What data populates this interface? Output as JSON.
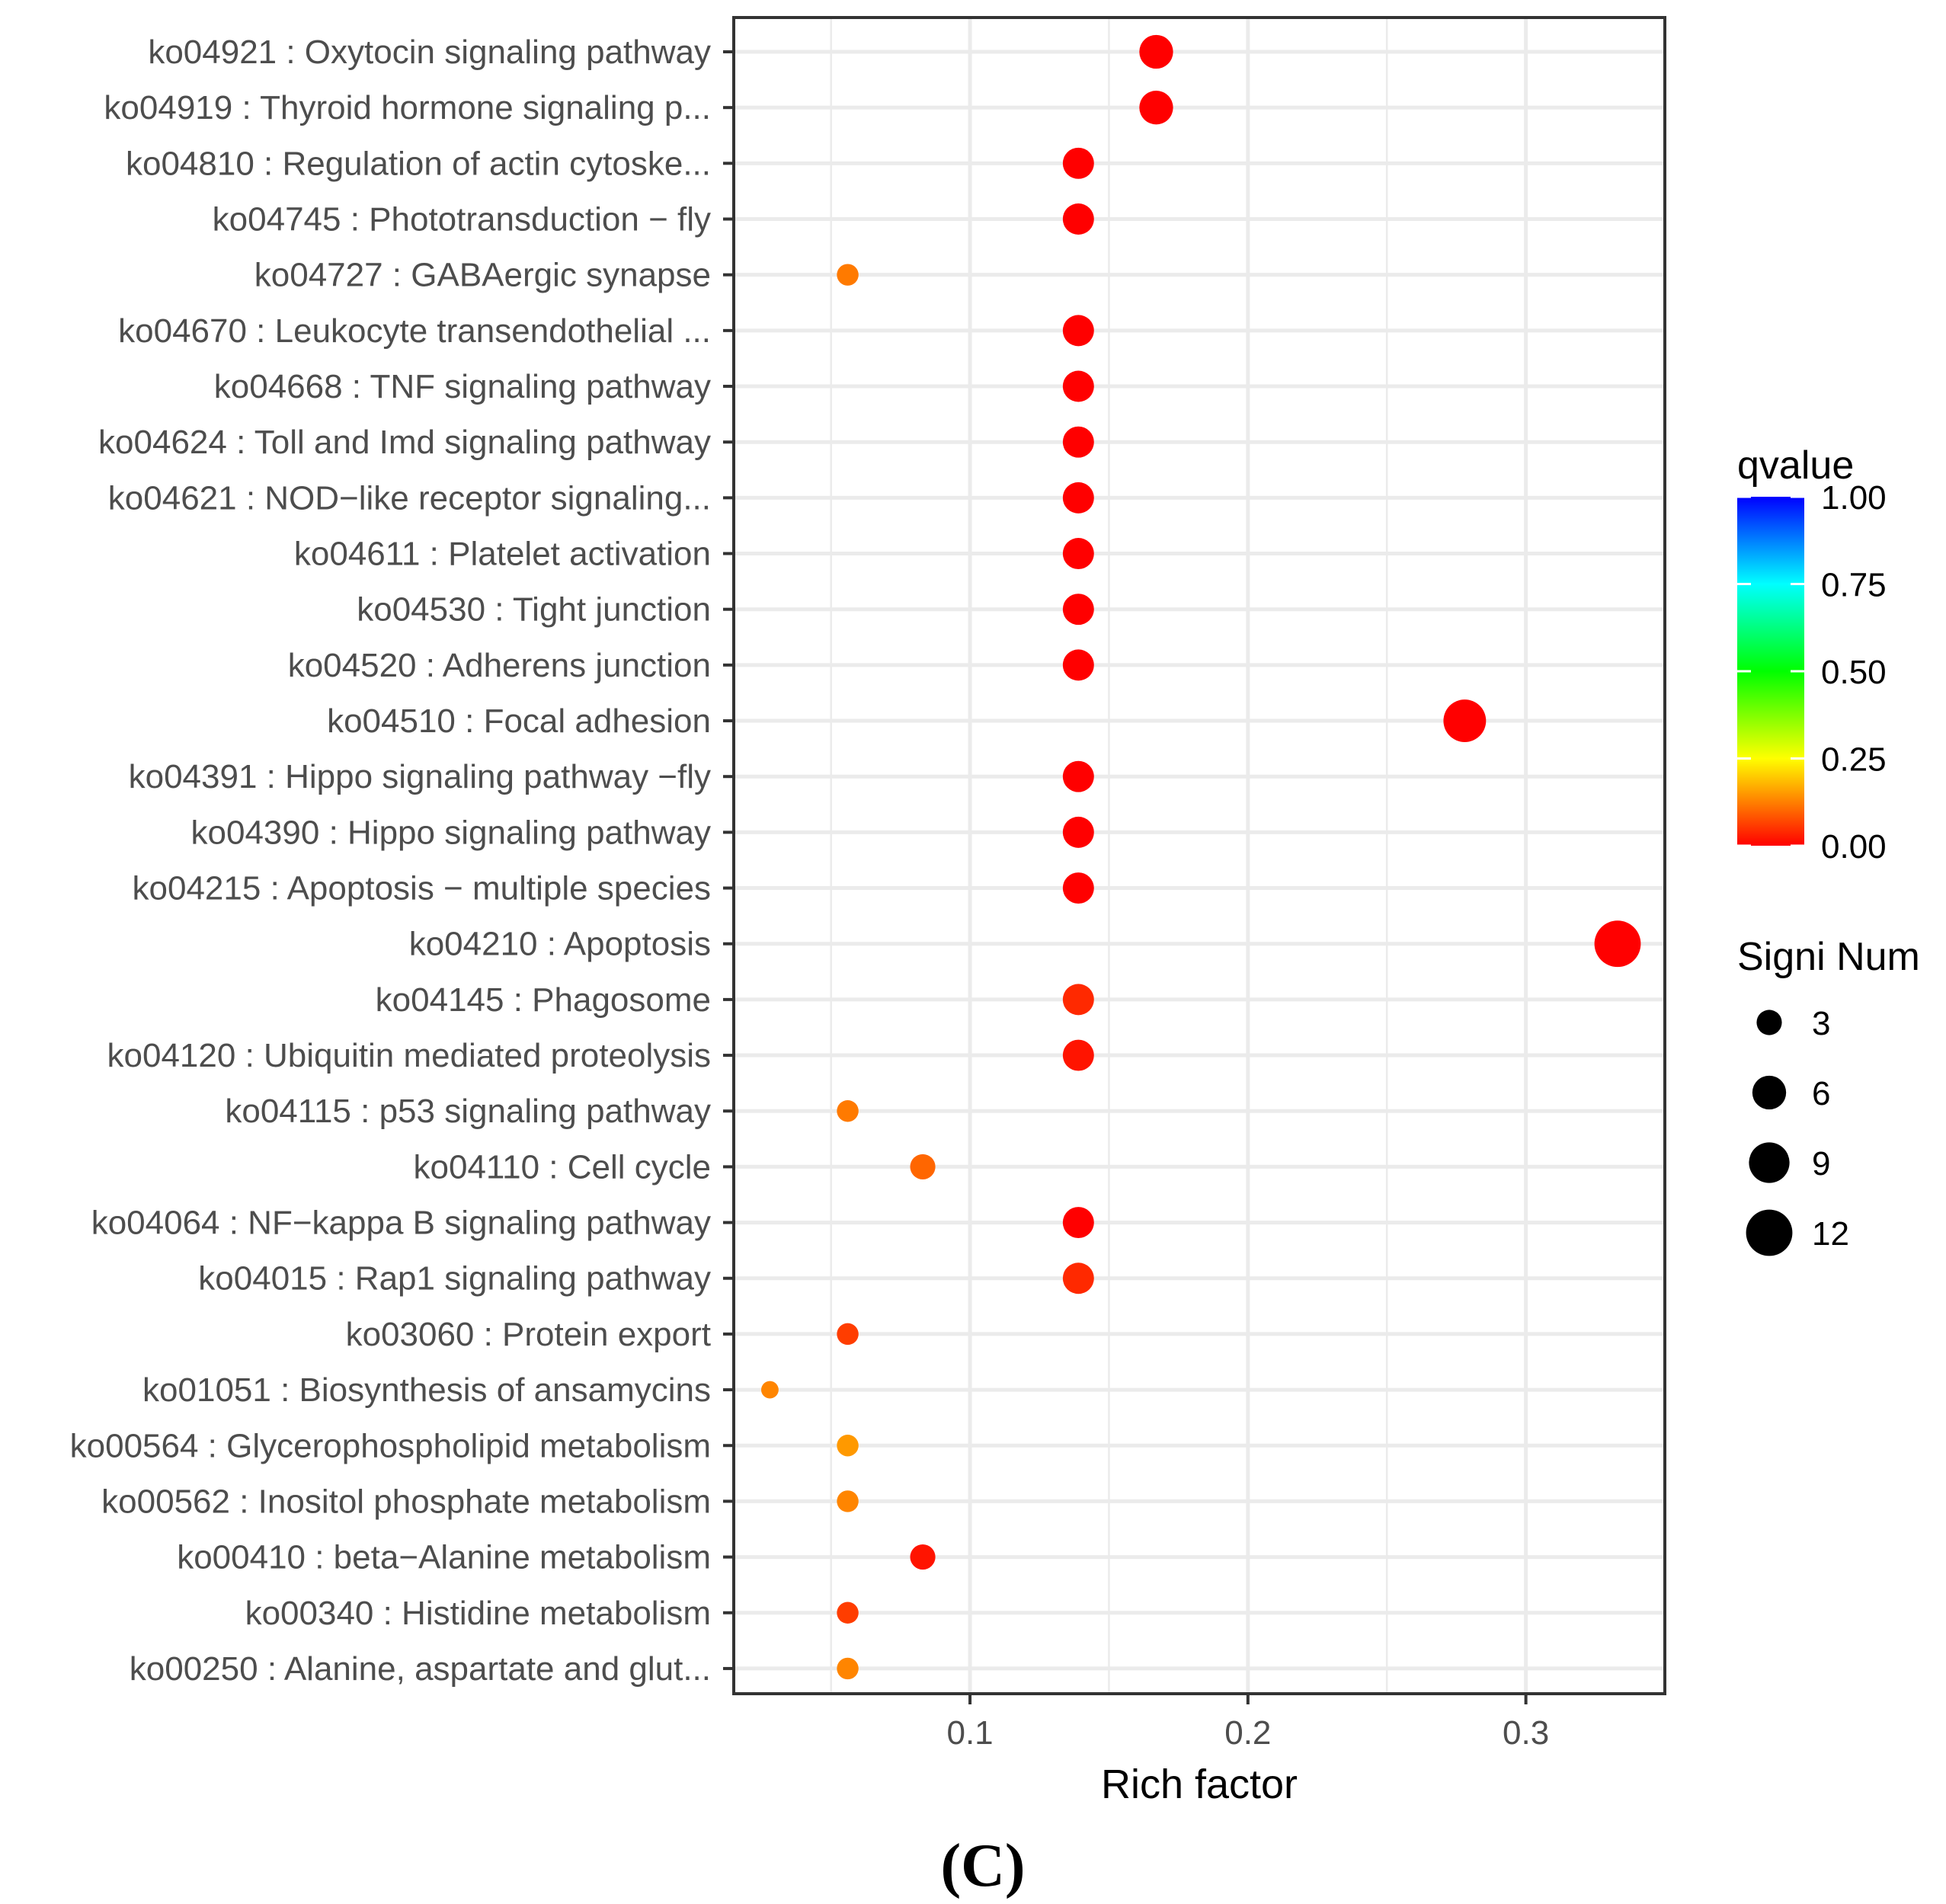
{
  "chart_data": {
    "type": "scatter",
    "title": "",
    "xlabel": "Rich factor",
    "ylabel": "",
    "xlim": [
      0.015,
      0.35
    ],
    "x_ticks": [
      0.1,
      0.2,
      0.3
    ],
    "x_tick_labels": [
      "0.1",
      "0.2",
      "0.3"
    ],
    "grid": true,
    "categories": [
      "ko04921 : Oxytocin signaling pathway",
      "ko04919 : Thyroid hormone signaling p...",
      "ko04810 : Regulation of actin cytoske...",
      "ko04745 : Phototransduction − fly",
      "ko04727 : GABAergic synapse",
      "ko04670 : Leukocyte transendothelial ...",
      "ko04668 : TNF signaling pathway",
      "ko04624 : Toll and Imd signaling pathway",
      "ko04621 : NOD−like receptor signaling...",
      "ko04611 : Platelet activation",
      "ko04530 : Tight junction",
      "ko04520 : Adherens junction",
      "ko04510 : Focal adhesion",
      "ko04391 : Hippo signaling pathway −fly",
      "ko04390 : Hippo signaling pathway",
      "ko04215 : Apoptosis − multiple species",
      "ko04210 : Apoptosis",
      "ko04145 : Phagosome",
      "ko04120 : Ubiquitin mediated proteolysis",
      "ko04115 : p53 signaling pathway",
      "ko04110 : Cell cycle",
      "ko04064 : NF−kappa B signaling pathway",
      "ko04015 : Rap1 signaling pathway",
      "ko03060 : Protein export",
      "ko01051 : Biosynthesis of ansamycins",
      "ko00564 : Glycerophospholipid metabolism",
      "ko00562 : Inositol phosphate metabolism",
      "ko00410 : beta−Alanine metabolism",
      "ko00340 : Histidine metabolism",
      "ko00250 : Alanine, aspartate and glut..."
    ],
    "rich_factor": [
      0.167,
      0.167,
      0.139,
      0.139,
      0.056,
      0.139,
      0.139,
      0.139,
      0.139,
      0.139,
      0.139,
      0.139,
      0.278,
      0.139,
      0.139,
      0.139,
      0.333,
      0.139,
      0.139,
      0.056,
      0.083,
      0.139,
      0.139,
      0.056,
      0.028,
      0.056,
      0.056,
      0.083,
      0.056,
      0.056
    ],
    "signi_num": [
      6,
      6,
      5,
      5,
      2,
      5,
      5,
      5,
      5,
      5,
      5,
      5,
      10,
      5,
      5,
      5,
      12,
      5,
      5,
      2,
      3,
      5,
      5,
      2,
      1,
      2,
      2,
      3,
      2,
      2
    ],
    "qvalue": [
      0.0,
      0.0,
      0.0,
      0.0,
      0.12,
      0.0,
      0.0,
      0.0,
      0.0,
      0.0,
      0.0,
      0.0,
      0.0,
      0.0,
      0.0,
      0.0,
      0.0,
      0.04,
      0.02,
      0.12,
      0.1,
      0.0,
      0.04,
      0.06,
      0.13,
      0.15,
      0.13,
      0.02,
      0.06,
      0.13
    ],
    "legend_color": {
      "title": "qvalue",
      "ticks": [
        1.0,
        0.75,
        0.5,
        0.25,
        0.0
      ],
      "tick_labels": [
        "1.00",
        "0.75",
        "0.50",
        "0.25",
        "0.00"
      ],
      "colors": [
        "#ff0000",
        "#ffff00",
        "#00ff00",
        "#00ffff",
        "#0000ff"
      ]
    },
    "legend_size": {
      "title": "Signi Num",
      "values": [
        3,
        6,
        9,
        12
      ],
      "labels": [
        "3",
        "6",
        "9",
        "12"
      ]
    },
    "caption": "(C)"
  }
}
